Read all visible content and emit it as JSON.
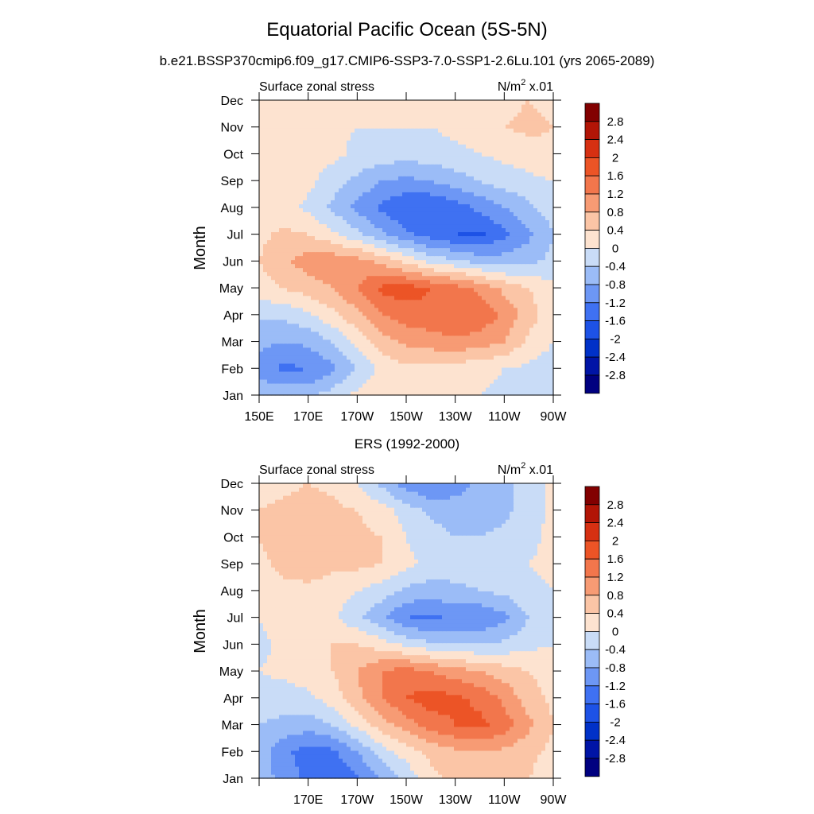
{
  "page": {
    "title": "Equatorial Pacific Ocean (5S-5N)",
    "subtitle": "b.e21.BSSP370cmip6.f09_g17.CMIP6-SSP3-7.0-SSP1-2.6Lu.101 (yrs 2065-2089)"
  },
  "colors": {
    "levels": [
      "#000080",
      "#0014a6",
      "#0031c8",
      "#1d52e6",
      "#3f71f2",
      "#6d97f5",
      "#9bbcf7",
      "#c9dcf7",
      "#fde3d0",
      "#fbc5a6",
      "#f79b74",
      "#f2764c",
      "#ec5426",
      "#d63012",
      "#b21506",
      "#820000"
    ]
  },
  "chart_data": [
    {
      "type": "heatmap",
      "title": "",
      "panel_left": "Surface zonal stress",
      "panel_right": "N/m",
      "panel_right_sup": "2",
      "panel_right_suffix": " x.01",
      "ylabel": "Month",
      "x_ticks": [
        "150E",
        "170E",
        "170W",
        "150W",
        "130W",
        "110W",
        "90W"
      ],
      "y_ticks": [
        "Jan",
        "Feb",
        "Mar",
        "Apr",
        "May",
        "Jun",
        "Jul",
        "Aug",
        "Sep",
        "Oct",
        "Nov",
        "Dec"
      ],
      "x_lon": [
        150,
        160,
        170,
        180,
        190,
        200,
        210,
        220,
        230,
        240,
        250,
        260,
        270
      ],
      "colorbar_labels": [
        "2.8",
        "2.4",
        "2",
        "1.6",
        "1.2",
        "0.8",
        "0.4",
        "0",
        "-0.4",
        "-0.8",
        "-1.2",
        "-1.6",
        "-2",
        "-2.4",
        "-2.8"
      ],
      "values": [
        [
          -0.5,
          -0.5,
          -0.5,
          -0.2,
          0.1,
          0.4,
          0.3,
          0.2,
          0.1,
          0.0,
          -0.1,
          -0.2,
          -0.2
        ],
        [
          -1.0,
          -1.3,
          -1.2,
          -0.9,
          -0.4,
          0.1,
          0.3,
          0.3,
          0.2,
          0.1,
          0.0,
          -0.1,
          -0.2
        ],
        [
          -0.7,
          -0.8,
          -0.7,
          -0.4,
          0.1,
          0.6,
          0.9,
          1.0,
          1.1,
          1.0,
          0.8,
          0.3,
          0.0
        ],
        [
          -0.3,
          -0.3,
          -0.1,
          0.3,
          0.7,
          1.2,
          1.4,
          1.5,
          1.6,
          1.5,
          1.1,
          0.6,
          0.1
        ],
        [
          0.2,
          0.4,
          0.6,
          0.8,
          1.2,
          1.7,
          1.8,
          1.6,
          1.4,
          1.1,
          0.7,
          0.4,
          0.1
        ],
        [
          0.4,
          0.7,
          1.0,
          1.1,
          1.0,
          0.7,
          0.3,
          -0.1,
          -0.3,
          -0.5,
          -0.6,
          -0.5,
          -0.3
        ],
        [
          0.3,
          0.5,
          0.4,
          0.1,
          -0.3,
          -0.7,
          -1.1,
          -1.4,
          -1.6,
          -1.7,
          -1.3,
          -0.9,
          -0.4
        ],
        [
          0.1,
          0.2,
          -0.1,
          -0.5,
          -0.9,
          -1.3,
          -1.6,
          -1.6,
          -1.4,
          -1.1,
          -0.8,
          -0.5,
          -0.2
        ],
        [
          0.2,
          0.2,
          0.1,
          -0.2,
          -0.5,
          -0.8,
          -0.9,
          -0.8,
          -0.6,
          -0.4,
          -0.2,
          -0.1,
          0.0
        ],
        [
          0.3,
          0.3,
          0.2,
          0.1,
          -0.1,
          -0.2,
          -0.2,
          -0.2,
          -0.1,
          0.0,
          0.1,
          0.2,
          0.3
        ],
        [
          0.2,
          0.3,
          0.2,
          0.1,
          0.0,
          0.0,
          0.0,
          0.0,
          0.1,
          0.2,
          0.4,
          0.5,
          0.4
        ],
        [
          0.1,
          0.2,
          0.2,
          0.1,
          0.0,
          0.0,
          0.0,
          0.0,
          0.0,
          0.1,
          0.3,
          0.4,
          0.3
        ]
      ]
    },
    {
      "type": "heatmap",
      "title": "ERS (1992-2000)",
      "panel_left": "Surface zonal stress",
      "panel_right": "N/m",
      "panel_right_sup": "2",
      "panel_right_suffix": " x.01",
      "ylabel": "Month",
      "x_ticks": [
        "",
        "170E",
        "170W",
        "150W",
        "130W",
        "110W",
        "90W"
      ],
      "y_ticks": [
        "Jan",
        "Feb",
        "Mar",
        "Apr",
        "May",
        "Jun",
        "Jul",
        "Aug",
        "Sep",
        "Oct",
        "Nov",
        "Dec"
      ],
      "x_lon": [
        150,
        160,
        170,
        180,
        190,
        200,
        210,
        220,
        230,
        240,
        250,
        260,
        270
      ],
      "colorbar_labels": [
        "2.8",
        "2.4",
        "2",
        "1.6",
        "1.2",
        "0.8",
        "0.4",
        "0",
        "-0.4",
        "-0.8",
        "-1.2",
        "-1.6",
        "-2",
        "-2.4",
        "-2.8"
      ],
      "values": [
        [
          -0.5,
          -1.0,
          -1.3,
          -1.5,
          -1.3,
          -0.8,
          -0.3,
          0.3,
          0.5,
          0.6,
          0.5,
          0.4,
          0.2
        ],
        [
          -0.6,
          -1.1,
          -1.4,
          -1.3,
          -0.8,
          -0.2,
          0.2,
          0.5,
          0.7,
          0.8,
          0.7,
          0.5,
          0.3
        ],
        [
          -0.4,
          -0.5,
          -0.6,
          -0.4,
          0.1,
          0.6,
          1.0,
          1.4,
          1.6,
          1.7,
          1.4,
          0.9,
          0.4
        ],
        [
          -0.2,
          -0.2,
          -0.1,
          0.2,
          0.7,
          1.2,
          1.6,
          1.8,
          1.7,
          1.5,
          1.1,
          0.6,
          0.3
        ],
        [
          0.0,
          0.1,
          0.2,
          0.4,
          0.8,
          1.2,
          1.4,
          1.2,
          1.0,
          0.8,
          0.6,
          0.4,
          0.2
        ],
        [
          -0.1,
          0.1,
          0.3,
          0.4,
          0.4,
          0.2,
          -0.1,
          -0.3,
          -0.4,
          -0.4,
          -0.3,
          -0.1,
          0.0
        ],
        [
          0.0,
          0.2,
          0.2,
          0.1,
          -0.3,
          -0.7,
          -1.2,
          -1.3,
          -1.1,
          -1.2,
          -0.9,
          -0.4,
          -0.1
        ],
        [
          0.1,
          0.3,
          0.3,
          0.2,
          0.0,
          -0.2,
          -0.5,
          -0.6,
          -0.5,
          -0.4,
          -0.3,
          -0.1,
          0.0
        ],
        [
          0.3,
          0.5,
          0.6,
          0.5,
          0.5,
          0.4,
          0.1,
          -0.1,
          -0.2,
          -0.2,
          -0.1,
          0.0,
          0.1
        ],
        [
          0.4,
          0.6,
          0.6,
          0.5,
          0.5,
          0.4,
          0.0,
          -0.2,
          -0.4,
          -0.4,
          -0.3,
          -0.1,
          0.1
        ],
        [
          0.4,
          0.5,
          0.6,
          0.5,
          0.4,
          0.2,
          -0.2,
          -0.5,
          -0.6,
          -0.6,
          -0.5,
          -0.2,
          0.1
        ],
        [
          0.2,
          0.3,
          0.4,
          0.3,
          0.0,
          -0.5,
          -1.0,
          -1.2,
          -1.0,
          -0.7,
          -0.5,
          -0.2,
          0.1
        ]
      ]
    }
  ]
}
